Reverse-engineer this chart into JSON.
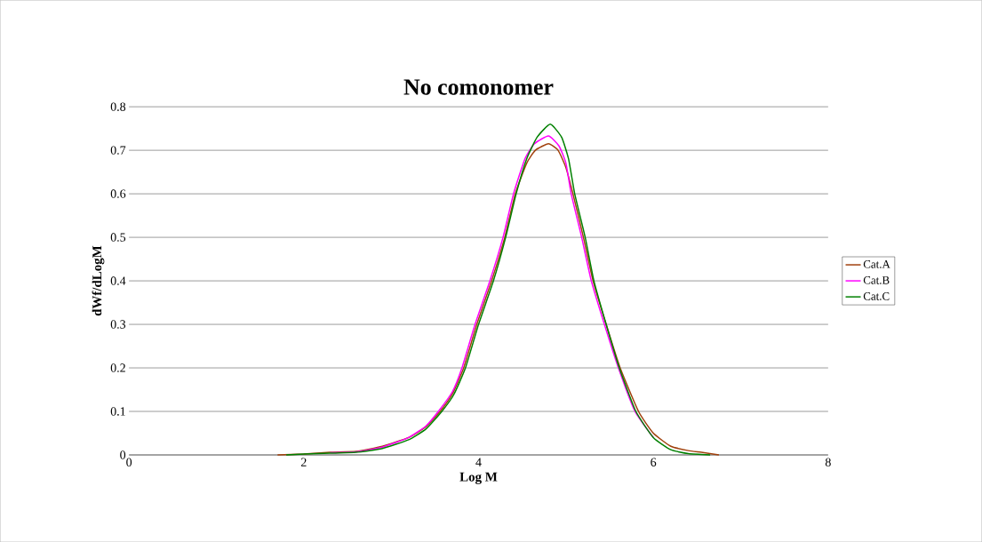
{
  "chart_data": {
    "type": "line",
    "title": "No comonomer",
    "xlabel": "Log M",
    "ylabel": "dWf/dLogM",
    "xlim": [
      0,
      8
    ],
    "xticks": [
      0,
      2,
      4,
      6,
      8
    ],
    "ylim": [
      0,
      0.8
    ],
    "yticks": [
      0,
      0.1,
      0.2,
      0.3,
      0.4,
      0.5,
      0.6,
      0.7,
      0.8
    ],
    "grid": "y",
    "legend": "right",
    "series": [
      {
        "name": "Cat.A",
        "color": "#a0400c",
        "x": [
          1.7,
          2.0,
          2.3,
          2.6,
          2.9,
          3.2,
          3.4,
          3.56,
          3.7,
          3.83,
          3.98,
          4.15,
          4.3,
          4.42,
          4.55,
          4.65,
          4.8,
          4.91,
          5.0,
          5.08,
          5.2,
          5.31,
          5.46,
          5.62,
          5.83,
          6.0,
          6.2,
          6.4,
          6.55,
          6.75
        ],
        "values": [
          0,
          0.002,
          0.006,
          0.008,
          0.02,
          0.04,
          0.065,
          0.1,
          0.14,
          0.2,
          0.3,
          0.4,
          0.5,
          0.6,
          0.67,
          0.7,
          0.715,
          0.7,
          0.66,
          0.6,
          0.5,
          0.4,
          0.3,
          0.2,
          0.1,
          0.05,
          0.02,
          0.01,
          0.006,
          0
        ]
      },
      {
        "name": "Cat.B",
        "color": "#ff00ff",
        "x": [
          2.3,
          2.6,
          2.9,
          3.2,
          3.4,
          3.54,
          3.7,
          3.81,
          3.96,
          4.13,
          4.28,
          4.4,
          4.53,
          4.64,
          4.8,
          4.92,
          5.0,
          5.06,
          5.18,
          5.29,
          5.44,
          5.6,
          5.79,
          6.0
        ],
        "values": [
          0.005,
          0.007,
          0.018,
          0.04,
          0.067,
          0.1,
          0.145,
          0.2,
          0.3,
          0.4,
          0.5,
          0.6,
          0.68,
          0.715,
          0.733,
          0.71,
          0.67,
          0.6,
          0.5,
          0.4,
          0.3,
          0.2,
          0.1,
          0.04
        ]
      },
      {
        "name": "Cat.C",
        "color": "#008000",
        "x": [
          1.8,
          2.0,
          2.3,
          2.6,
          2.9,
          3.2,
          3.4,
          3.58,
          3.72,
          3.85,
          4.0,
          4.17,
          4.31,
          4.43,
          4.55,
          4.67,
          4.82,
          4.95,
          5.03,
          5.1,
          5.22,
          5.32,
          5.46,
          5.61,
          5.8,
          6.0,
          6.2,
          6.4,
          6.65
        ],
        "values": [
          0,
          0.002,
          0.004,
          0.006,
          0.015,
          0.035,
          0.06,
          0.1,
          0.14,
          0.2,
          0.3,
          0.4,
          0.5,
          0.6,
          0.68,
          0.73,
          0.76,
          0.73,
          0.68,
          0.6,
          0.5,
          0.4,
          0.3,
          0.2,
          0.1,
          0.04,
          0.012,
          0.003,
          0
        ]
      }
    ]
  }
}
